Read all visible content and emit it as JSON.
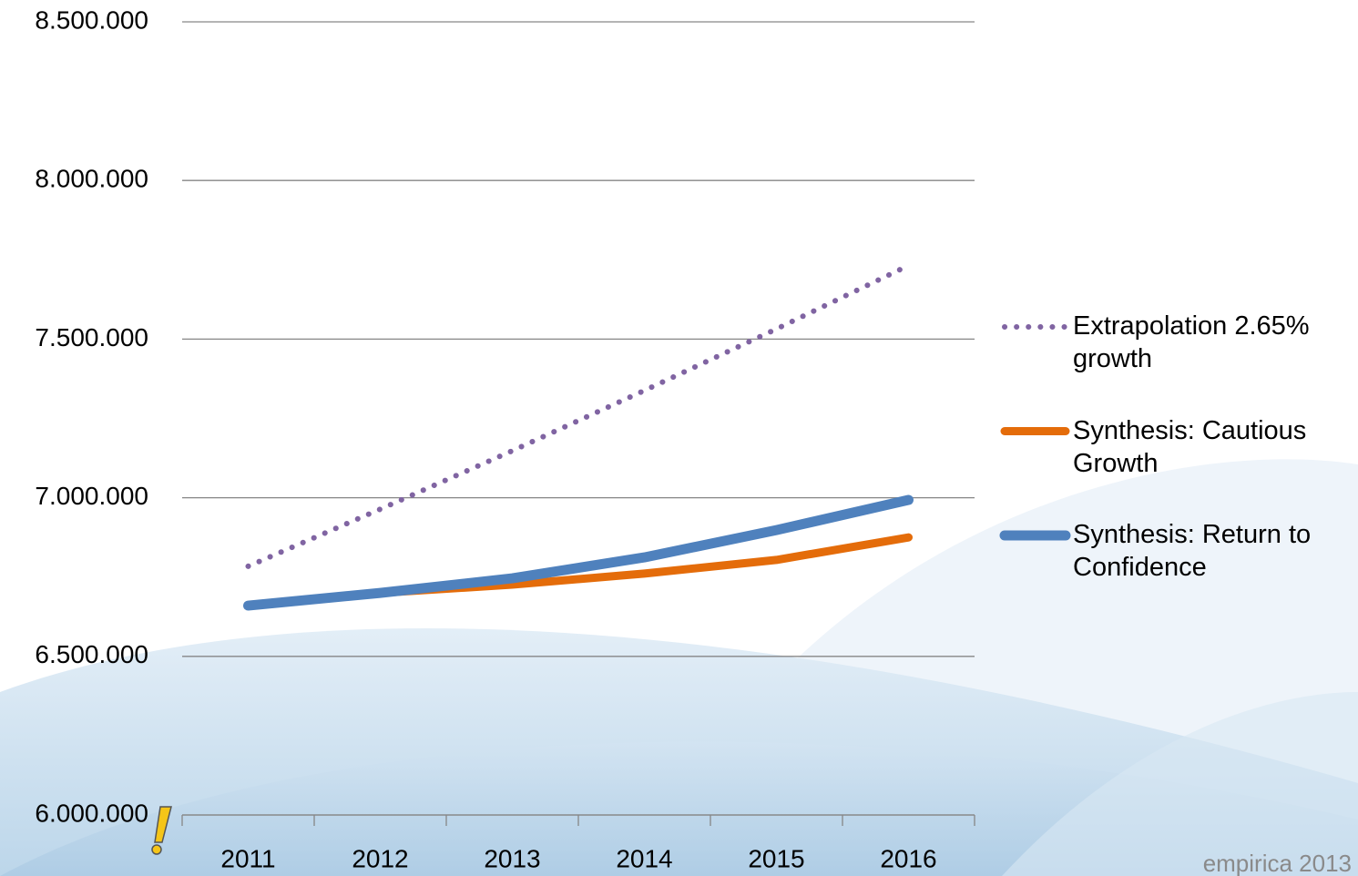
{
  "chart_data": {
    "type": "line",
    "categories": [
      "2011",
      "2012",
      "2013",
      "2014",
      "2015",
      "2016"
    ],
    "series": [
      {
        "name": "Extrapolation 2.65% growth",
        "color": "#8064a2",
        "style": "dotted",
        "values": [
          6784000,
          6964000,
          7148000,
          7338000,
          7532000,
          7732000
        ]
      },
      {
        "name": "Synthesis: Cautious Growth",
        "color": "#e46c0a",
        "style": "solid",
        "values": [
          6660000,
          6700000,
          6726000,
          6761000,
          6804000,
          6875000
        ]
      },
      {
        "name": "Synthesis: Return to Confidence",
        "color": "#4f81bd",
        "style": "solid",
        "values": [
          6660000,
          6700000,
          6746000,
          6812000,
          6898000,
          6993000
        ]
      }
    ],
    "ylim": [
      6000000,
      8500000
    ],
    "yticks": [
      {
        "value": 6000000,
        "label": "6.000.000"
      },
      {
        "value": 6500000,
        "label": "6.500.000"
      },
      {
        "value": 7000000,
        "label": "7.000.000"
      },
      {
        "value": 7500000,
        "label": "7.500.000"
      },
      {
        "value": 8000000,
        "label": "8.000.000"
      },
      {
        "value": 8500000,
        "label": "8.500.000"
      }
    ],
    "grid": true,
    "legend": "right",
    "footer": "empirica 2013"
  }
}
